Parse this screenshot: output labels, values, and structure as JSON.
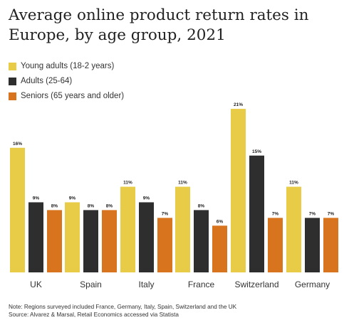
{
  "chart_data": {
    "type": "bar",
    "title": "Average online product return rates in Europe, by age group, 2021",
    "xlabel": "",
    "ylabel": "",
    "categories": [
      "UK",
      "Spain",
      "Italy",
      "France",
      "Switzerland",
      "Germany"
    ],
    "series": [
      {
        "name": "Young adults (18-2 years)",
        "color": "#E8CC47",
        "values": [
          16,
          9,
          11,
          11,
          21,
          11
        ]
      },
      {
        "name": "Adults (25-64)",
        "color": "#2E2E2E",
        "values": [
          9,
          8,
          9,
          8,
          15,
          7
        ]
      },
      {
        "name": "Seniors (65 years and older)",
        "color": "#D9741E",
        "values": [
          8,
          8,
          7,
          6,
          7,
          7
        ]
      }
    ],
    "value_suffix": "%",
    "ylim": [
      0,
      22
    ],
    "grid": false,
    "legend_position": "top-left"
  },
  "notes": {
    "line1": "Note: Regions surveyed included France, Germany, Italy, Spain, Switzerland and the UK",
    "line2": "Source: Alvarez & Marsal, Retail Economics accessed via Statista"
  }
}
